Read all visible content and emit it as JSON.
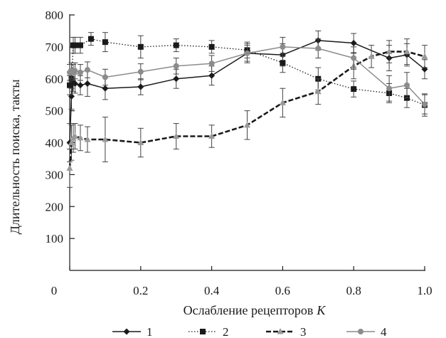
{
  "chart_data": {
    "type": "line",
    "title": "",
    "xlabel": "Ослабление рецепторов",
    "xlabel_var": "K",
    "ylabel": "Длительность поиска, такты",
    "xlim": [
      0,
      1.0
    ],
    "ylim": [
      0,
      800
    ],
    "xticks": [
      "0",
      "0.2",
      "0.4",
      "0.6",
      "0.8",
      "1.0"
    ],
    "yticks": [
      "100",
      "200",
      "300",
      "400",
      "500",
      "600",
      "700",
      "800"
    ],
    "grid": false,
    "legend_position": "bottom",
    "series": [
      {
        "name": "1",
        "color": "#1a1a1a",
        "dash": "solid",
        "marker": "diamond",
        "x": [
          0.0,
          0.005,
          0.01,
          0.015,
          0.03,
          0.05,
          0.1,
          0.2,
          0.3,
          0.4,
          0.5,
          0.6,
          0.7,
          0.8,
          0.9,
          0.95,
          1.0
        ],
        "y": [
          400,
          545,
          590,
          585,
          580,
          585,
          570,
          575,
          600,
          610,
          680,
          675,
          720,
          712,
          665,
          675,
          630
        ],
        "err": [
          60,
          40,
          30,
          30,
          30,
          40,
          35,
          25,
          30,
          30,
          30,
          35,
          30,
          30,
          40,
          35,
          30
        ]
      },
      {
        "name": "2",
        "color": "#1a1a1a",
        "dash": "dotted",
        "marker": "square",
        "x": [
          0.0,
          0.005,
          0.01,
          0.015,
          0.03,
          0.06,
          0.1,
          0.2,
          0.3,
          0.4,
          0.5,
          0.6,
          0.7,
          0.8,
          0.9,
          0.95,
          1.0
        ],
        "y": [
          580,
          600,
          705,
          705,
          705,
          725,
          715,
          700,
          705,
          700,
          690,
          650,
          600,
          568,
          555,
          540,
          518
        ],
        "err": [
          30,
          30,
          25,
          25,
          25,
          20,
          30,
          35,
          20,
          20,
          25,
          30,
          35,
          25,
          30,
          30,
          35
        ]
      },
      {
        "name": "3",
        "color": "#1a1a1a",
        "dash": "dashed",
        "marker": "triangle",
        "x": [
          0.0,
          0.005,
          0.01,
          0.015,
          0.03,
          0.05,
          0.1,
          0.2,
          0.3,
          0.4,
          0.5,
          0.6,
          0.7,
          0.8,
          0.85,
          0.9,
          0.95,
          1.0
        ],
        "y": [
          320,
          400,
          415,
          420,
          415,
          410,
          410,
          400,
          420,
          420,
          455,
          525,
          560,
          640,
          670,
          685,
          685,
          670
        ],
        "err": [
          60,
          55,
          45,
          40,
          40,
          40,
          70,
          45,
          40,
          35,
          45,
          45,
          40,
          40,
          35,
          35,
          40,
          35
        ]
      },
      {
        "name": "4",
        "color": "#8c8c8c",
        "dash": "solid",
        "marker": "circle",
        "x": [
          0.0,
          0.005,
          0.01,
          0.015,
          0.03,
          0.05,
          0.1,
          0.2,
          0.3,
          0.4,
          0.5,
          0.6,
          0.7,
          0.8,
          0.9,
          0.95,
          1.0
        ],
        "y": [
          620,
          625,
          620,
          625,
          620,
          628,
          605,
          622,
          640,
          648,
          680,
          700,
          695,
          665,
          570,
          580,
          520
        ],
        "err": [
          25,
          25,
          25,
          25,
          25,
          25,
          25,
          25,
          25,
          25,
          25,
          30,
          30,
          35,
          40,
          40,
          30
        ]
      }
    ]
  }
}
